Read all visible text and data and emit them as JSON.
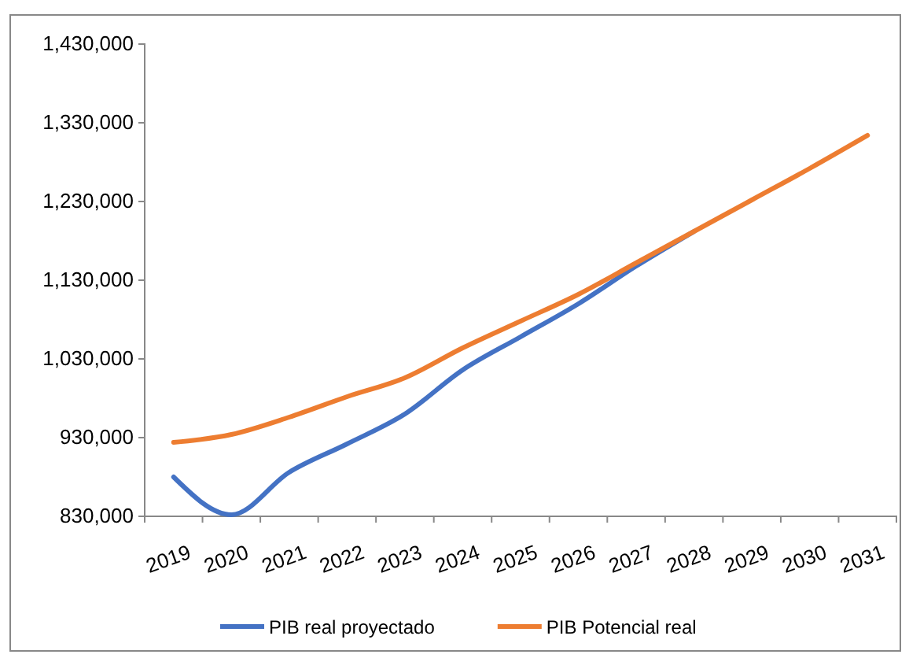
{
  "chart_data": {
    "type": "line",
    "categories": [
      "2019",
      "2020",
      "2021",
      "2022",
      "2023",
      "2024",
      "2025",
      "2026",
      "2027",
      "2028",
      "2029",
      "2030",
      "2031"
    ],
    "series": [
      {
        "name": "PIB real proyectado",
        "color": "#4472c4",
        "values": [
          880000,
          832000,
          886000,
          922000,
          960000,
          1016000,
          1058000,
          1100000,
          1148000,
          1192000,
          null,
          null,
          null
        ]
      },
      {
        "name": "PIB Potencial real",
        "color": "#ed7d31",
        "values": [
          924000,
          934000,
          956000,
          982000,
          1006000,
          1044000,
          1078000,
          1112000,
          1152000,
          1192000,
          1232000,
          1272000,
          1314000
        ]
      }
    ],
    "ylim": [
      830000,
      1430000
    ],
    "yticks": [
      {
        "value": 830000,
        "label": "830,000"
      },
      {
        "value": 930000,
        "label": "930,000"
      },
      {
        "value": 1030000,
        "label": "1,030,000"
      },
      {
        "value": 1130000,
        "label": "1,130,000"
      },
      {
        "value": 1230000,
        "label": "1,230,000"
      },
      {
        "value": 1330000,
        "label": "1,330,000"
      },
      {
        "value": 1430000,
        "label": "1,430,000"
      }
    ],
    "grid": false,
    "legend": "bottom",
    "marker": "none",
    "line_style": "solid"
  }
}
